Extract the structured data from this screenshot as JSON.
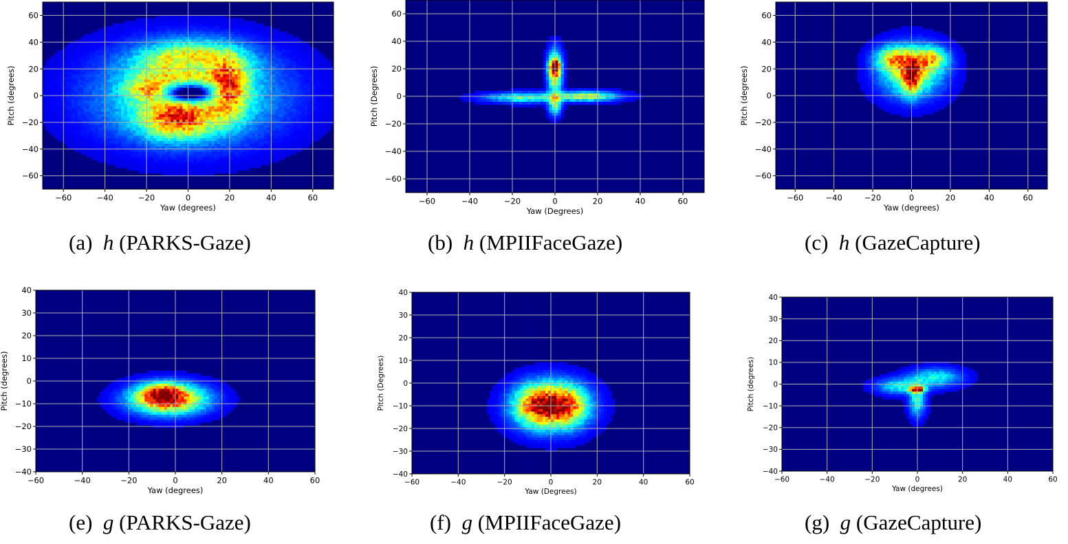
{
  "figure": {
    "panels": [
      {
        "id": "a",
        "caption_prefix": "(a)",
        "caption_var": "h",
        "caption_name": "(PARKS-Gaze)"
      },
      {
        "id": "b",
        "caption_prefix": "(b)",
        "caption_var": "h",
        "caption_name": "(MPIIFaceGaze)"
      },
      {
        "id": "c",
        "caption_prefix": "(c)",
        "caption_var": "h",
        "caption_name": "(GazeCapture)"
      },
      {
        "id": "e",
        "caption_prefix": "(e)",
        "caption_var": "g",
        "caption_name": "(PARKS-Gaze)"
      },
      {
        "id": "f",
        "caption_prefix": "(f)",
        "caption_var": "g",
        "caption_name": "(MPIIFaceGaze)"
      },
      {
        "id": "g",
        "caption_prefix": "(g)",
        "caption_var": "g",
        "caption_name": "(GazeCapture)"
      }
    ]
  },
  "chart_data": [
    {
      "type": "heatmap",
      "panel": "a",
      "xlabel": "Yaw (degrees)",
      "ylabel": "Pitch (degrees)",
      "xlim": [
        -70,
        70
      ],
      "ylim": [
        -70,
        70
      ],
      "xticks": [
        -60,
        -40,
        -20,
        0,
        20,
        40,
        60
      ],
      "yticks": [
        -60,
        -40,
        -20,
        0,
        20,
        40,
        60
      ],
      "grid": true,
      "colormap": "jet",
      "density_components": [
        {
          "cx": 0,
          "cy": 0,
          "sx": 30,
          "sy": 24,
          "w": 0.45
        },
        {
          "cx": 2,
          "cy": 25,
          "sx": 16,
          "sy": 10,
          "w": 0.55
        },
        {
          "cx": -5,
          "cy": -18,
          "sx": 12,
          "sy": 10,
          "w": 0.5
        },
        {
          "cx": 20,
          "cy": 5,
          "sx": 6,
          "sy": 15,
          "w": 0.45
        },
        {
          "cx": -18,
          "cy": 5,
          "sx": 8,
          "sy": 6,
          "w": 0.35
        },
        {
          "cx": 0,
          "cy": 2,
          "sx": 9,
          "sy": 5,
          "w": -0.75
        },
        {
          "cx": 3,
          "cy": 22,
          "sx": 9,
          "sy": 5,
          "w": -0.35
        }
      ]
    },
    {
      "type": "heatmap",
      "panel": "b",
      "xlabel": "Yaw (Degrees)",
      "ylabel": "Pitch (Degrees)",
      "xlim": [
        -70,
        70
      ],
      "ylim": [
        -70,
        70
      ],
      "xticks": [
        -60,
        -40,
        -20,
        0,
        20,
        40,
        60
      ],
      "yticks": [
        -60,
        -40,
        -20,
        0,
        20,
        40,
        60
      ],
      "grid": true,
      "colormap": "jet",
      "density_components": [
        {
          "cx": -15,
          "cy": -1,
          "sx": 12,
          "sy": 2.5,
          "w": 0.4
        },
        {
          "cx": 15,
          "cy": 0,
          "sx": 10,
          "sy": 2.5,
          "w": 0.5
        },
        {
          "cx": 0,
          "cy": 18,
          "sx": 2.2,
          "sy": 10,
          "w": 0.75
        },
        {
          "cx": 0,
          "cy": -7,
          "sx": 2,
          "sy": 5,
          "w": 0.4
        },
        {
          "cx": 0,
          "cy": 22,
          "sx": 1.6,
          "sy": 3,
          "w": 0.6
        }
      ]
    },
    {
      "type": "heatmap",
      "panel": "c",
      "xlabel": "Yaw (degrees)",
      "ylabel": "Pitch (degrees)",
      "xlim": [
        -70,
        70
      ],
      "ylim": [
        -70,
        70
      ],
      "xticks": [
        -60,
        -40,
        -20,
        0,
        20,
        40,
        60
      ],
      "yticks": [
        -60,
        -40,
        -20,
        0,
        20,
        40,
        60
      ],
      "grid": true,
      "colormap": "jet",
      "density_components": [
        {
          "cx": 0,
          "cy": 18,
          "sx": 11,
          "sy": 13,
          "w": 0.55
        },
        {
          "cx": -10,
          "cy": 28,
          "sx": 6,
          "sy": 6,
          "w": 0.4
        },
        {
          "cx": 10,
          "cy": 28,
          "sx": 6,
          "sy": 6,
          "w": 0.4
        },
        {
          "cx": 0,
          "cy": 14,
          "sx": 3,
          "sy": 9,
          "w": 0.5
        }
      ]
    },
    {
      "type": "heatmap",
      "panel": "e",
      "xlabel": "Yaw (degrees)",
      "ylabel": "Pitch (degrees)",
      "xlim": [
        -60,
        60
      ],
      "ylim": [
        -40,
        40
      ],
      "xticks": [
        -60,
        -40,
        -20,
        0,
        20,
        40,
        60
      ],
      "yticks": [
        -40,
        -30,
        -20,
        -10,
        0,
        10,
        20,
        30,
        40
      ],
      "grid": true,
      "colormap": "jet",
      "density_components": [
        {
          "cx": -3,
          "cy": -8,
          "sx": 11,
          "sy": 4.5,
          "w": 0.85
        },
        {
          "cx": -6,
          "cy": -5,
          "sx": 6,
          "sy": 3,
          "w": 0.35
        }
      ]
    },
    {
      "type": "heatmap",
      "panel": "f",
      "xlabel": "Yaw (Degrees)",
      "ylabel": "Pitch (Degrees)",
      "xlim": [
        -60,
        60
      ],
      "ylim": [
        -40,
        40
      ],
      "xticks": [
        -60,
        -40,
        -20,
        0,
        20,
        40,
        60
      ],
      "yticks": [
        -40,
        -30,
        -20,
        -10,
        0,
        10,
        20,
        30,
        40
      ],
      "grid": true,
      "colormap": "jet",
      "density_components": [
        {
          "cx": 0,
          "cy": -10,
          "sx": 10,
          "sy": 7,
          "w": 0.8
        },
        {
          "cx": -8,
          "cy": -10,
          "sx": 6,
          "sy": 6,
          "w": 0.25
        },
        {
          "cx": 8,
          "cy": -10,
          "sx": 6,
          "sy": 6,
          "w": 0.25
        }
      ]
    },
    {
      "type": "heatmap",
      "panel": "g",
      "xlabel": "Yaw (degrees)",
      "ylabel": "Pitch (degrees)",
      "xlim": [
        -60,
        60
      ],
      "ylim": [
        -40,
        40
      ],
      "xticks": [
        -60,
        -40,
        -20,
        0,
        20,
        40,
        60
      ],
      "yticks": [
        -40,
        -30,
        -20,
        -10,
        0,
        10,
        20,
        30,
        40
      ],
      "grid": true,
      "colormap": "jet",
      "density_components": [
        {
          "cx": -8,
          "cy": -1,
          "sx": 7,
          "sy": 2.5,
          "w": 0.32
        },
        {
          "cx": 8,
          "cy": 3,
          "sx": 8,
          "sy": 3,
          "w": 0.32
        },
        {
          "cx": 0,
          "cy": -8,
          "sx": 2.5,
          "sy": 5,
          "w": 0.35
        },
        {
          "cx": 0,
          "cy": -2.5,
          "sx": 2.2,
          "sy": 0.9,
          "w": 0.8
        }
      ]
    }
  ]
}
